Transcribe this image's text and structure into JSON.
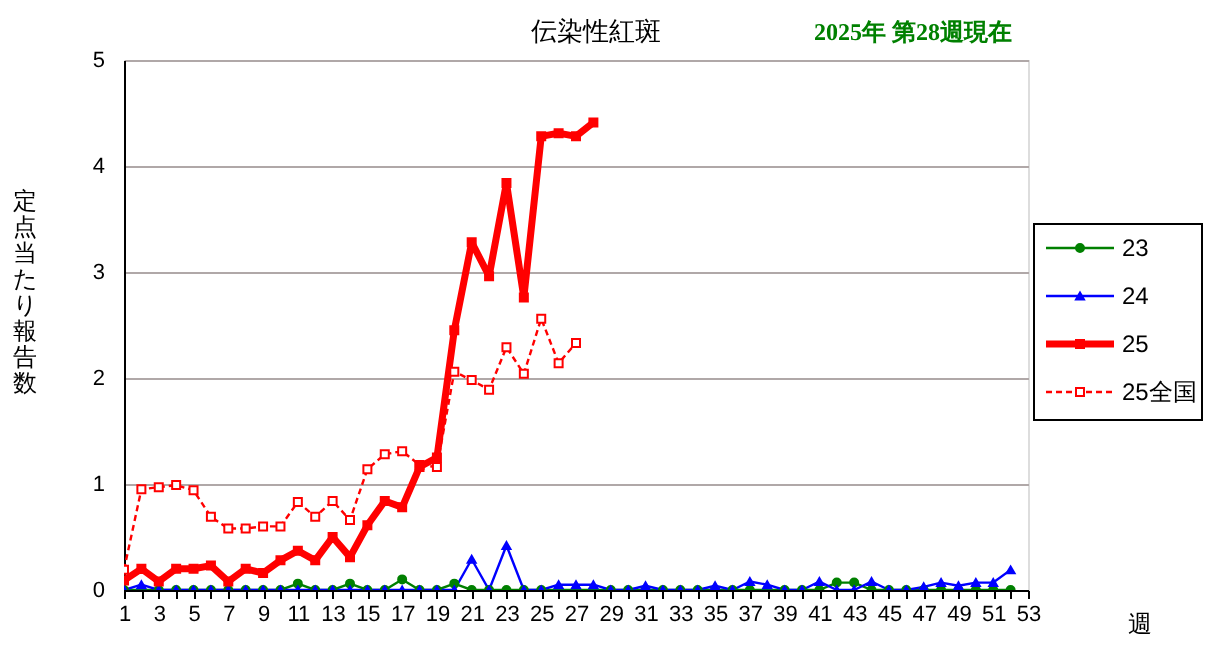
{
  "chart_data": {
    "type": "line",
    "title": "伝染性紅斑",
    "annotations": [
      "2025年 第28週現在"
    ],
    "xlabel": "週",
    "ylabel": "定点当たり報告数",
    "x": [
      1,
      2,
      3,
      4,
      5,
      6,
      7,
      8,
      9,
      10,
      11,
      12,
      13,
      14,
      15,
      16,
      17,
      18,
      19,
      20,
      21,
      22,
      23,
      24,
      25,
      26,
      27,
      28,
      29,
      30,
      31,
      32,
      33,
      34,
      35,
      36,
      37,
      38,
      39,
      40,
      41,
      42,
      43,
      44,
      45,
      46,
      47,
      48,
      49,
      50,
      51,
      52
    ],
    "series": [
      {
        "name": "23",
        "color": "#008000",
        "marker": "circle",
        "line_style": "solid",
        "values": [
          0,
          0,
          0,
          0,
          0,
          0,
          0,
          0,
          0,
          0,
          0.06,
          0,
          0,
          0.06,
          0,
          0,
          0.1,
          0,
          0,
          0.06,
          0,
          0,
          0,
          0,
          0,
          0,
          0,
          0,
          0,
          0,
          0,
          0,
          0,
          0,
          0,
          0,
          0,
          0,
          0,
          0,
          0,
          0.07,
          0.07,
          0,
          0,
          0,
          0,
          0,
          0,
          0,
          0,
          0
        ]
      },
      {
        "name": "24",
        "color": "#0000ff",
        "marker": "triangle",
        "line_style": "solid",
        "values": [
          0,
          0.05,
          0,
          0,
          0,
          0,
          0,
          0,
          0,
          0,
          0,
          0,
          0,
          0,
          0,
          0,
          0,
          0,
          0,
          0,
          0.29,
          0,
          0.42,
          0,
          0,
          0.05,
          0.05,
          0.05,
          0,
          0,
          0.04,
          0,
          0,
          0,
          0.04,
          0,
          0.08,
          0.05,
          0,
          0,
          0.08,
          0,
          0,
          0.08,
          0,
          0,
          0.03,
          0.07,
          0.04,
          0.07,
          0.07,
          0.19
        ]
      },
      {
        "name": "25",
        "color": "#ff0000",
        "marker": "square",
        "line_style": "solid",
        "x": [
          1,
          2,
          3,
          4,
          5,
          6,
          7,
          8,
          9,
          10,
          11,
          12,
          13,
          14,
          15,
          16,
          17,
          18,
          19,
          20,
          21,
          22,
          23,
          24,
          25,
          26,
          27,
          28
        ],
        "values": [
          0.09,
          0.2,
          0.08,
          0.2,
          0.2,
          0.23,
          0.08,
          0.2,
          0.16,
          0.28,
          0.37,
          0.28,
          0.5,
          0.31,
          0.61,
          0.84,
          0.78,
          1.16,
          1.25,
          2.45,
          3.28,
          2.96,
          3.84,
          2.76,
          4.28,
          4.31,
          4.28,
          4.41
        ]
      },
      {
        "name": "25全国",
        "color": "#ff0000",
        "marker": "square",
        "line_style": "dashed",
        "x": [
          1,
          2,
          3,
          4,
          5,
          6,
          7,
          8,
          9,
          10,
          11,
          12,
          13,
          14,
          15,
          16,
          17,
          18,
          19,
          20,
          21,
          22,
          23,
          24,
          25,
          26,
          27
        ],
        "values": [
          0.19,
          0.95,
          0.97,
          0.99,
          0.94,
          0.69,
          0.58,
          0.58,
          0.6,
          0.6,
          0.83,
          0.69,
          0.84,
          0.66,
          1.14,
          1.28,
          1.31,
          1.18,
          1.16,
          2.06,
          1.98,
          1.89,
          2.29,
          2.04,
          2.56,
          2.14,
          2.33
        ]
      }
    ],
    "xlim": [
      1,
      53
    ],
    "xticks": [
      1,
      {
        "value": 2,
        "label": null
      },
      3,
      {
        "value": 4,
        "label": null
      },
      5,
      {
        "value": 6,
        "label": null
      },
      7,
      {
        "value": 8,
        "label": null
      },
      9,
      {
        "value": 10,
        "label": null
      },
      11,
      {
        "value": 12,
        "label": null
      },
      13,
      {
        "value": 14,
        "label": null
      },
      15,
      {
        "value": 16,
        "label": null
      },
      17,
      {
        "value": 18,
        "label": null
      },
      19,
      {
        "value": 20,
        "label": null
      },
      21,
      {
        "value": 22,
        "label": null
      },
      23,
      {
        "value": 24,
        "label": null
      },
      25,
      {
        "value": 26,
        "label": null
      },
      27,
      {
        "value": 28,
        "label": null
      },
      29,
      {
        "value": 30,
        "label": null
      },
      31,
      {
        "value": 32,
        "label": null
      },
      33,
      {
        "value": 34,
        "label": null
      },
      35,
      {
        "value": 36,
        "label": null
      },
      37,
      {
        "value": 38,
        "label": null
      },
      39,
      {
        "value": 40,
        "label": null
      },
      41,
      {
        "value": 42,
        "label": null
      },
      43,
      {
        "value": 44,
        "label": null
      },
      45,
      {
        "value": 46,
        "label": null
      },
      47,
      {
        "value": 48,
        "label": null
      },
      49,
      {
        "value": 50,
        "label": null
      },
      51,
      {
        "value": 52,
        "label": null
      },
      53
    ],
    "ylim": [
      0,
      5
    ],
    "yticks": [
      0,
      1,
      2,
      3,
      4,
      5
    ],
    "grid": "y",
    "legend": "right"
  }
}
